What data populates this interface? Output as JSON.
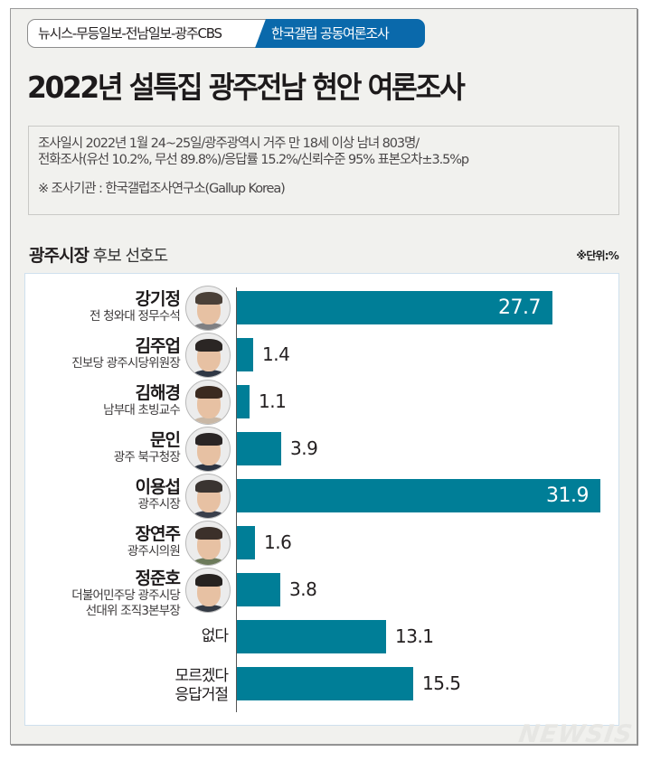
{
  "header": {
    "badge_sources": "뉴시스-무등일보-전남일보-광주CBS",
    "badge_pollster": "한국갤럽 공동여론조사",
    "title": "2022년 설특집 광주전남 현안 여론조사"
  },
  "survey_info": {
    "line1": "조사일시 2022년 1월 24~25일/광주광역시 거주 만 18세 이상 남녀 803명/",
    "line2": "전화조사(유선 10.2%, 무선 89.8%)/응답률 15.2%/신뢰수준 95% 표본오차±3.5%p",
    "note": "※ 조사기관 : 한국갤럽조사연구소(Gallup Korea)"
  },
  "section": {
    "title_bold": "광주시장",
    "title_light": "후보 선호도",
    "unit": "※단위:%"
  },
  "colors": {
    "bar": "#007e97",
    "badge_blue": "#0a69ab",
    "background": "#f1f1ee"
  },
  "rows": [
    {
      "name": "강기정",
      "sub": "전 청와대 정무수석",
      "value": "27.7",
      "photo": true
    },
    {
      "name": "김주업",
      "sub": "진보당 광주시당위원장",
      "value": "1.4",
      "photo": true
    },
    {
      "name": "김해경",
      "sub": "남부대 초빙교수",
      "value": "1.1",
      "photo": true
    },
    {
      "name": "문인",
      "sub": "광주 북구청장",
      "value": "3.9",
      "photo": true
    },
    {
      "name": "이용섭",
      "sub": "광주시장",
      "value": "31.9",
      "photo": true
    },
    {
      "name": "장연주",
      "sub": "광주시의원",
      "value": "1.6",
      "photo": true
    },
    {
      "name": "정준호",
      "sub": "더불어민주당 광주시당",
      "sub2": "선대위 조직3본부장",
      "value": "3.8",
      "photo": true
    },
    {
      "name": "없다",
      "value": "13.1",
      "photo": false
    },
    {
      "name": "모르겠다",
      "name2": "응답거절",
      "value": "15.5",
      "photo": false
    }
  ],
  "chart_data": {
    "type": "bar",
    "orientation": "horizontal",
    "title": "광주시장 후보 선호도",
    "unit": "%",
    "categories": [
      "강기정",
      "김주업",
      "김해경",
      "문인",
      "이용섭",
      "장연주",
      "정준호",
      "없다",
      "모르겠다/응답거절"
    ],
    "category_subtitles": [
      "전 청와대 정무수석",
      "진보당 광주시당위원장",
      "남부대 초빙교수",
      "광주 북구청장",
      "광주시장",
      "광주시의원",
      "더불어민주당 광주시당 선대위 조직3본부장",
      "",
      ""
    ],
    "values": [
      27.7,
      1.4,
      1.1,
      3.9,
      31.9,
      1.6,
      3.8,
      13.1,
      15.5
    ],
    "xlabel": "",
    "ylabel": "",
    "grid": false,
    "legend": null
  },
  "watermark": "NEWSIS"
}
